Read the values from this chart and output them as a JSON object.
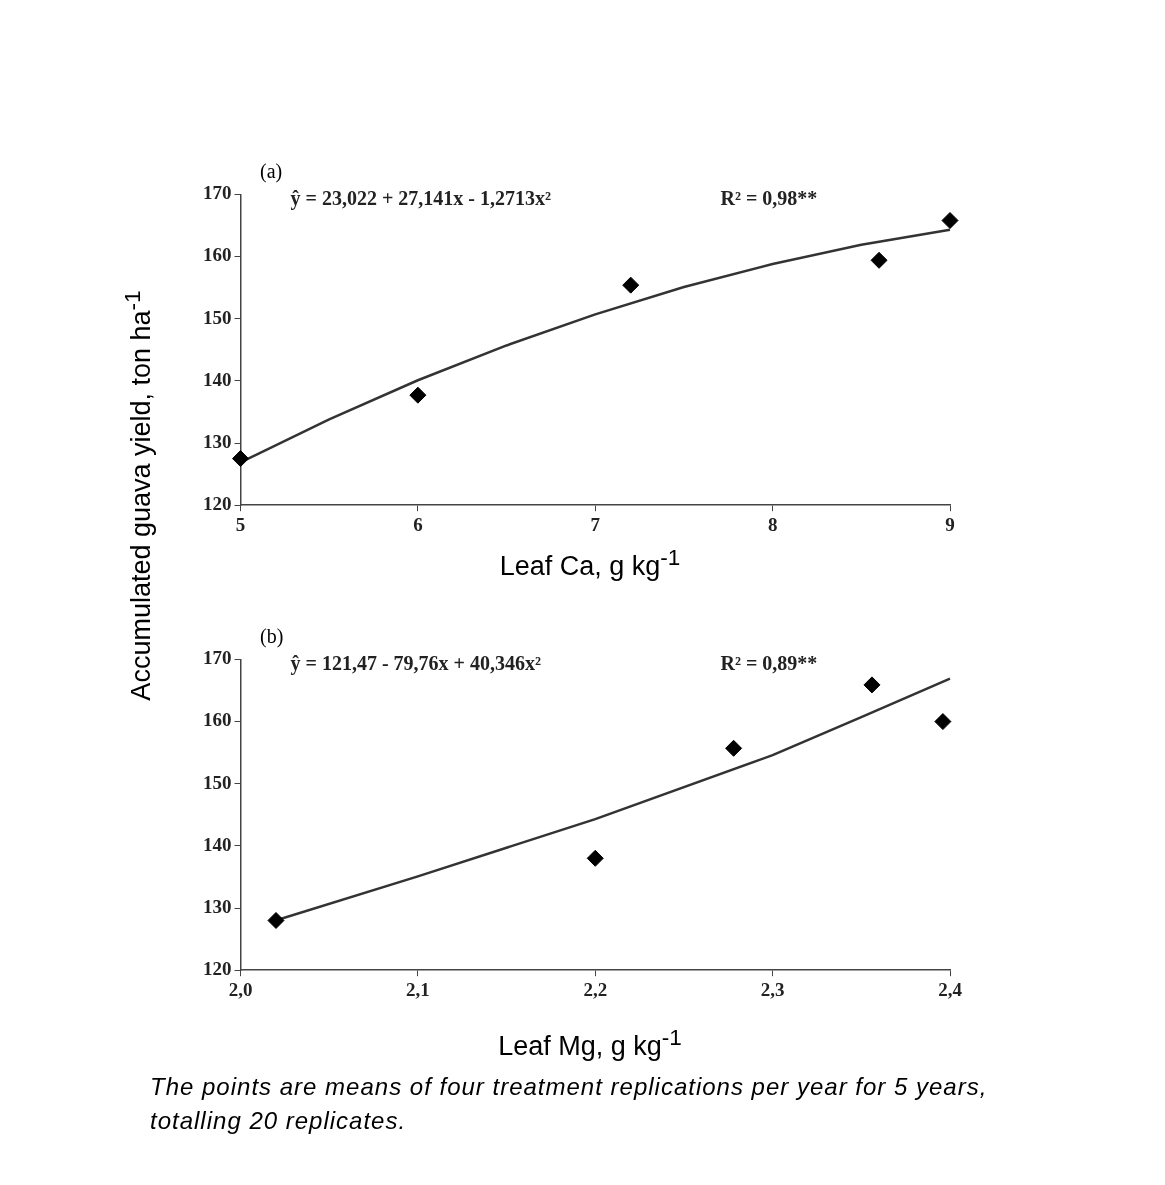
{
  "chart_data": [
    {
      "type": "scatter",
      "title": "(a)",
      "xlabel": "Leaf Ca, g kg$^{-1}$",
      "ylabel": "Accumulated guava yield, ton ha$^{-1}$",
      "annotations": [
        "ŷ = 23,022 + 27,141x - 1,2713x²",
        "R² = 0,98**"
      ],
      "series": [
        {
          "type": "scatter",
          "color": "#000000",
          "marker": "diamond",
          "x": [
            5.0,
            6.0,
            7.2,
            8.6,
            9.0
          ],
          "values": [
            127.5,
            137.7,
            155.4,
            159.4,
            165.8
          ]
        },
        {
          "type": "line",
          "color": "#333333",
          "marker": "none",
          "x": [
            5.0,
            5.5,
            6.0,
            6.5,
            7.0,
            7.5,
            8.0,
            8.5,
            9.0
          ],
          "values": [
            126.9,
            133.8,
            140.1,
            145.7,
            150.7,
            155.1,
            158.8,
            161.9,
            164.3
          ]
        }
      ],
      "xlim": [
        5,
        9
      ],
      "xticks": [
        5,
        6,
        7,
        8,
        9
      ],
      "ylim": [
        120,
        170
      ],
      "yticks": [
        120,
        130,
        140,
        150,
        160,
        170
      ],
      "grid": false,
      "legend": false
    },
    {
      "type": "scatter",
      "title": "(b)",
      "xlabel": "Leaf Mg, g kg$^{-1}$",
      "annotations": [
        "ŷ = 121,47 - 79,76x + 40,346x²",
        "R² = 0,89**",
        "The points are means of four treatment replications per year for 5 years, totalling 20 replicates."
      ],
      "series": [
        {
          "type": "scatter",
          "color": "#000000",
          "marker": "diamond",
          "x": [
            2.02,
            2.2,
            2.278,
            2.356,
            2.396
          ],
          "values": [
            128.0,
            138.0,
            155.7,
            165.9,
            160.0
          ]
        },
        {
          "type": "line",
          "color": "#333333",
          "marker": "none",
          "x": [
            2.022,
            2.1,
            2.2,
            2.3,
            2.35,
            2.4
          ],
          "values": [
            128.2,
            135.1,
            144.3,
            154.6,
            160.7,
            166.9
          ]
        }
      ],
      "xlim": [
        2.0,
        2.4
      ],
      "xticks": [
        {
          "value": 2.0,
          "label": "2,0"
        },
        {
          "value": 2.1,
          "label": "2,1"
        },
        {
          "value": 2.2,
          "label": "2,2"
        },
        {
          "value": 2.3,
          "label": "2,3"
        },
        {
          "value": 2.4,
          "label": "2,4"
        }
      ],
      "ylim": [
        120,
        170
      ],
      "yticks": [
        120,
        130,
        140,
        150,
        160,
        170
      ],
      "grid": false,
      "legend": false
    }
  ]
}
